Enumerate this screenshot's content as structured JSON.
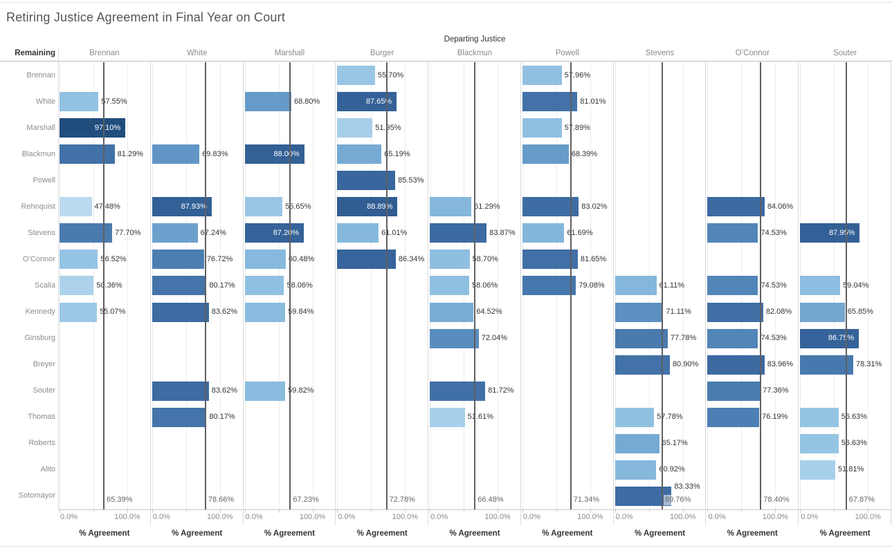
{
  "title": "Retiring Justice Agreement in Final Year on Court",
  "chart_data": {
    "type": "bar",
    "layout": "small-multiples-horizontal-bars",
    "col_field_label": "Departing Justice",
    "row_field_label": "Remaining",
    "xlabel": "% Agreement",
    "x_tick_labels": [
      "0.0%",
      "100.0%"
    ],
    "x_axis_range": [
      0,
      100
    ],
    "gridlines_pct": [
      0,
      50,
      100
    ],
    "value_format": "0.00%",
    "columns": [
      "Brennan",
      "White",
      "Marshall",
      "Burger",
      "Blackmun",
      "Powell",
      "Stevens",
      "O’Connor",
      "Souter"
    ],
    "rows": [
      "Brennan",
      "White",
      "Marshall",
      "Blackmun",
      "Powell",
      "Rehnquist",
      "Stevens",
      "O’Connor",
      "Scalia",
      "Kennedy",
      "Ginsburg",
      "Breyer",
      "Souter",
      "Thomas",
      "Roberts",
      "Alito",
      "Sotomayor"
    ],
    "series": [
      {
        "name": "Brennan",
        "reference_avg": 65.39,
        "values": {
          "White": 57.55,
          "Marshall": 97.1,
          "Blackmun": 81.29,
          "Rehnquist": 47.48,
          "Stevens": 77.7,
          "O’Connor": 56.52,
          "Scalia": 50.36,
          "Kennedy": 55.07
        }
      },
      {
        "name": "White",
        "reference_avg": 78.66,
        "values": {
          "Blackmun": 69.83,
          "Rehnquist": 87.93,
          "Stevens": 67.24,
          "O’Connor": 76.72,
          "Scalia": 80.17,
          "Kennedy": 83.62,
          "Souter": 83.62,
          "Thomas": 80.17
        }
      },
      {
        "name": "Marshall",
        "reference_avg": 67.23,
        "values": {
          "White": 68.8,
          "Blackmun": 88.0,
          "Rehnquist": 55.65,
          "Stevens": 87.2,
          "O’Connor": 60.48,
          "Scalia": 58.06,
          "Kennedy": 59.84,
          "Souter": 59.82
        }
      },
      {
        "name": "Burger",
        "reference_avg": 72.78,
        "values": {
          "Brennan": 55.7,
          "White": 87.65,
          "Marshall": 51.95,
          "Blackmun": 65.19,
          "Powell": 85.53,
          "Rehnquist": 88.89,
          "Stevens": 61.01,
          "O’Connor": 86.34
        }
      },
      {
        "name": "Blackmun",
        "reference_avg": 66.48,
        "values": {
          "Rehnquist": 61.29,
          "Stevens": 83.87,
          "O’Connor": 58.7,
          "Scalia": 58.06,
          "Kennedy": 64.52,
          "Ginsburg": 72.04,
          "Souter": 81.72,
          "Thomas": 51.61
        }
      },
      {
        "name": "Powell",
        "reference_avg": 71.34,
        "values": {
          "Brennan": 57.96,
          "White": 81.01,
          "Marshall": 57.89,
          "Blackmun": 68.39,
          "Rehnquist": 83.02,
          "Stevens": 61.69,
          "O’Connor": 81.65,
          "Scalia": 79.08
        }
      },
      {
        "name": "Stevens",
        "reference_avg": 69.76,
        "values": {
          "Scalia": 61.11,
          "Kennedy": 71.11,
          "Ginsburg": 77.78,
          "Breyer": 80.9,
          "Thomas": 57.78,
          "Roberts": 65.17,
          "Alito": 60.92,
          "Sotomayor": 83.33
        }
      },
      {
        "name": "O’Connor",
        "reference_avg": 78.4,
        "values": {
          "Rehnquist": 84.06,
          "Stevens": 74.53,
          "Scalia": 74.53,
          "Kennedy": 82.08,
          "Ginsburg": 74.53,
          "Breyer": 83.96,
          "Souter": 77.36,
          "Thomas": 76.19
        }
      },
      {
        "name": "Souter",
        "reference_avg": 67.87,
        "values": {
          "Stevens": 87.95,
          "Scalia": 59.04,
          "Kennedy": 65.85,
          "Ginsburg": 86.75,
          "Breyer": 78.31,
          "Thomas": 56.63,
          "Roberts": 56.63,
          "Alito": 51.81
        }
      }
    ]
  },
  "colors": {
    "bar_color_stops": [
      [
        45,
        "#c8e0f2"
      ],
      [
        50,
        "#aed4ec"
      ],
      [
        55,
        "#9cc8e6"
      ],
      [
        60,
        "#89bbde"
      ],
      [
        65,
        "#77abd4"
      ],
      [
        70,
        "#6094c4"
      ],
      [
        75,
        "#5083b7"
      ],
      [
        80,
        "#4474a9"
      ],
      [
        85,
        "#3a689f"
      ],
      [
        90,
        "#2e5a8f"
      ],
      [
        100,
        "#1c4875"
      ]
    ],
    "reference_line": "#5f5f5f",
    "reference_label": "#666666",
    "bar_label_dark": "#333333",
    "bar_label_light": "#ffffff",
    "header_text": "#8a8a8a",
    "field_label_text": "#333333",
    "axis_text": "#8a8a8a",
    "title_text": "#555555"
  }
}
